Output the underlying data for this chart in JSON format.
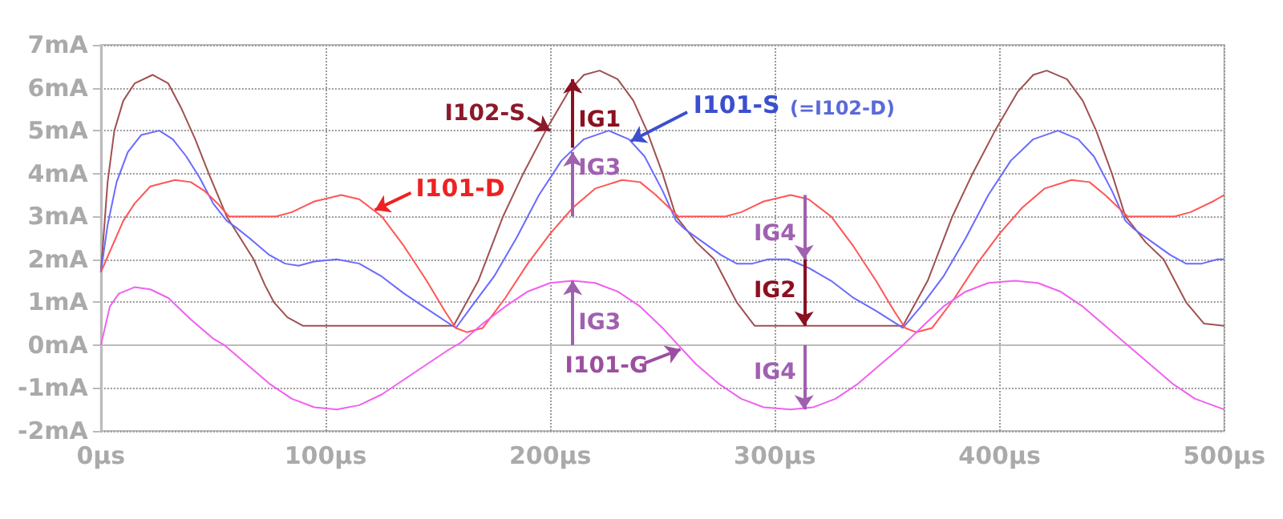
{
  "chart_data": {
    "type": "line",
    "xlim": [
      0,
      500
    ],
    "ylim": [
      -2,
      7
    ],
    "xticks": [
      {
        "value": 0,
        "label": "0µs"
      },
      {
        "value": 100,
        "label": "100µs"
      },
      {
        "value": 200,
        "label": "200µs"
      },
      {
        "value": 300,
        "label": "300µs"
      },
      {
        "value": 400,
        "label": "400µs"
      },
      {
        "value": 500,
        "label": "500µs"
      }
    ],
    "yticks": [
      {
        "value": -2,
        "label": "-2mA"
      },
      {
        "value": -1,
        "label": "-1mA"
      },
      {
        "value": 0,
        "label": "0mA"
      },
      {
        "value": 1,
        "label": "1mA"
      },
      {
        "value": 2,
        "label": "2mA"
      },
      {
        "value": 3,
        "label": "3mA"
      },
      {
        "value": 4,
        "label": "4mA"
      },
      {
        "value": 5,
        "label": "5mA"
      },
      {
        "value": 6,
        "label": "6mA"
      },
      {
        "value": 7,
        "label": "7mA"
      }
    ],
    "grid": true,
    "marker": "none",
    "line_style": "solid",
    "series": [
      {
        "color": "#a05050",
        "x": [
          0,
          3,
          6,
          10,
          15,
          23,
          30,
          36,
          42,
          48,
          56,
          62,
          68,
          73,
          77,
          83,
          90,
          157,
          168,
          179,
          188,
          198,
          208,
          215,
          222,
          230,
          237,
          243,
          250,
          256,
          265,
          273,
          283,
          291,
          357,
          368,
          379,
          388,
          398,
          408,
          415,
          421,
          430,
          437,
          443,
          450,
          456,
          465,
          473,
          483,
          491,
          500
        ],
        "values": [
          1.7,
          3.8,
          5.0,
          5.7,
          6.1,
          6.3,
          6.1,
          5.5,
          4.8,
          4.0,
          3.0,
          2.5,
          2.0,
          1.4,
          1.0,
          0.65,
          0.45,
          0.45,
          1.5,
          3.0,
          4.0,
          5.0,
          5.9,
          6.3,
          6.4,
          6.2,
          5.7,
          5.0,
          4.0,
          3.0,
          2.4,
          2.0,
          1.0,
          0.45,
          0.45,
          1.5,
          3.0,
          4.0,
          5.0,
          5.9,
          6.3,
          6.4,
          6.2,
          5.7,
          5.0,
          4.0,
          3.0,
          2.4,
          2.0,
          1.0,
          0.5,
          0.45
        ]
      },
      {
        "color": "#6a6aff",
        "x": [
          0,
          3,
          7,
          12,
          18,
          26,
          32,
          38,
          44,
          50,
          56,
          60,
          66,
          75,
          82,
          88,
          95,
          105,
          115,
          125,
          135,
          145,
          158,
          165,
          175,
          185,
          195,
          205,
          215,
          226,
          235,
          242,
          250,
          256,
          260,
          268,
          276,
          283,
          290,
          297,
          306,
          315,
          325,
          335,
          345,
          357,
          365,
          375,
          385,
          395,
          405,
          415,
          426,
          435,
          442,
          450,
          456,
          460,
          468,
          476,
          483,
          490,
          497,
          500
        ],
        "values": [
          1.7,
          2.8,
          3.8,
          4.5,
          4.9,
          5.0,
          4.8,
          4.4,
          3.9,
          3.3,
          2.9,
          2.75,
          2.5,
          2.1,
          1.9,
          1.85,
          1.95,
          2.0,
          1.9,
          1.6,
          1.2,
          0.85,
          0.4,
          0.9,
          1.6,
          2.5,
          3.5,
          4.3,
          4.8,
          5.0,
          4.8,
          4.4,
          3.6,
          2.9,
          2.7,
          2.4,
          2.1,
          1.9,
          1.9,
          2.0,
          2.0,
          1.8,
          1.5,
          1.1,
          0.8,
          0.4,
          0.9,
          1.6,
          2.5,
          3.5,
          4.3,
          4.8,
          5.0,
          4.8,
          4.4,
          3.6,
          2.9,
          2.7,
          2.4,
          2.1,
          1.9,
          1.9,
          2.0,
          2.0
        ]
      },
      {
        "color": "#ff5555",
        "x": [
          0,
          5,
          10,
          15,
          22,
          33,
          40,
          46,
          52,
          57,
          62,
          78,
          85,
          95,
          107,
          115,
          125,
          135,
          145,
          153,
          158,
          163,
          170,
          180,
          190,
          200,
          210,
          220,
          232,
          240,
          247,
          253,
          257,
          262,
          278,
          285,
          295,
          307,
          315,
          325,
          335,
          345,
          353,
          358,
          363,
          370,
          380,
          390,
          400,
          410,
          420,
          432,
          440,
          447,
          453,
          457,
          462,
          478,
          485,
          495,
          500
        ],
        "values": [
          1.7,
          2.3,
          2.9,
          3.3,
          3.7,
          3.85,
          3.8,
          3.6,
          3.3,
          3.0,
          3.0,
          3.0,
          3.1,
          3.35,
          3.5,
          3.4,
          3.0,
          2.3,
          1.5,
          0.8,
          0.4,
          0.3,
          0.4,
          1.1,
          1.9,
          2.6,
          3.2,
          3.65,
          3.85,
          3.8,
          3.5,
          3.2,
          3.0,
          3.0,
          3.0,
          3.1,
          3.35,
          3.5,
          3.4,
          3.0,
          2.3,
          1.5,
          0.8,
          0.4,
          0.3,
          0.4,
          1.1,
          1.9,
          2.6,
          3.2,
          3.65,
          3.85,
          3.8,
          3.5,
          3.2,
          3.0,
          3.0,
          3.0,
          3.1,
          3.35,
          3.5
        ]
      },
      {
        "color": "#f060f0",
        "x": [
          0,
          4,
          8,
          15,
          22,
          30,
          40,
          50,
          55,
          65,
          75,
          85,
          95,
          105,
          115,
          125,
          135,
          145,
          155,
          160,
          170,
          180,
          190,
          200,
          210,
          220,
          230,
          240,
          250,
          257,
          265,
          275,
          285,
          295,
          307,
          317,
          327,
          337,
          347,
          357,
          365,
          375,
          385,
          395,
          407,
          417,
          427,
          437,
          447,
          457,
          467,
          477,
          487,
          500
        ],
        "values": [
          0,
          0.9,
          1.2,
          1.35,
          1.3,
          1.1,
          0.6,
          0.15,
          0,
          -0.45,
          -0.9,
          -1.25,
          -1.45,
          -1.5,
          -1.4,
          -1.15,
          -0.8,
          -0.45,
          -0.1,
          0.05,
          0.5,
          0.9,
          1.25,
          1.45,
          1.5,
          1.45,
          1.25,
          0.9,
          0.4,
          0,
          -0.45,
          -0.9,
          -1.25,
          -1.45,
          -1.5,
          -1.45,
          -1.25,
          -0.9,
          -0.45,
          0,
          0.4,
          0.9,
          1.25,
          1.45,
          1.5,
          1.45,
          1.25,
          0.9,
          0.45,
          0,
          -0.45,
          -0.9,
          -1.25,
          -1.5
        ]
      }
    ],
    "annotations": [
      {
        "text": "I102-S",
        "x": 200,
        "y": 5.0
      },
      {
        "text": "IG1",
        "x": 210,
        "y": 6.2
      },
      {
        "text": "I101-S",
        "x": 236,
        "y": 4.76
      },
      "(=I102-D)",
      {
        "text": "I101-D",
        "x": 122,
        "y": 3.15
      },
      {
        "text": "IG3",
        "x": 210,
        "y": 4.5
      },
      {
        "text": "IG3",
        "x": 210,
        "y": 1.5
      },
      {
        "text": "I101-G",
        "x": 258,
        "y": -0.1
      },
      {
        "text": "IG4",
        "x": 313,
        "y": 2.0
      },
      {
        "text": "IG2",
        "x": 313,
        "y": 0.45
      },
      {
        "text": "IG4",
        "x": 313,
        "y": -1.5
      }
    ]
  }
}
